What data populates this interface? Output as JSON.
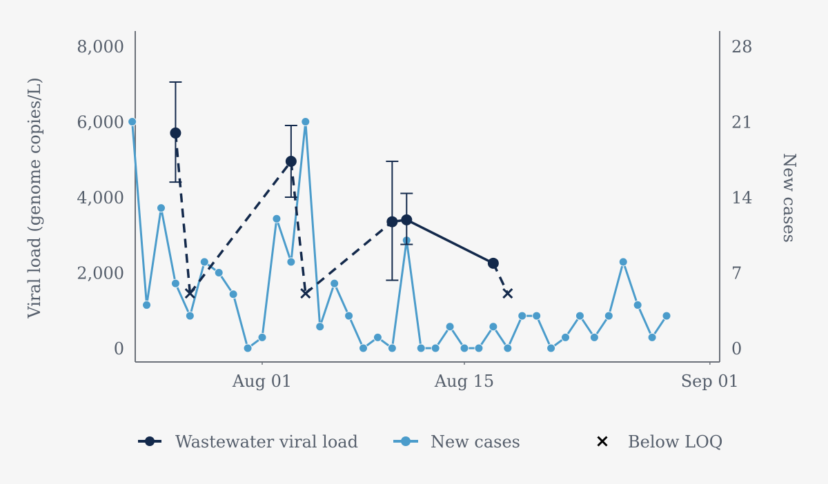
{
  "chart_data": {
    "type": "line",
    "x_axis": {
      "type": "date",
      "ticks": [
        "2021-08-01",
        "2021-08-15",
        "2021-09-01"
      ],
      "tick_labels": [
        "Aug 01",
        "Aug 15",
        "Sep 01"
      ],
      "range": [
        "2021-07-23",
        "2021-09-01"
      ]
    },
    "y_left": {
      "label": "Viral load (genome copies/L)",
      "ticks": [
        0,
        2000,
        4000,
        6000,
        8000
      ],
      "tick_labels": [
        "0",
        "2,000",
        "4,000",
        "6,000",
        "8,000"
      ],
      "ylim": [
        0,
        8000
      ]
    },
    "y_right": {
      "label": "New cases",
      "ticks": [
        0,
        7,
        14,
        21,
        28
      ],
      "tick_labels": [
        "0",
        "7",
        "14",
        "21",
        "28"
      ],
      "ylim": [
        0,
        28
      ]
    },
    "grid": false,
    "legend_position": "bottom",
    "series": [
      {
        "name": "Wastewater viral load",
        "axis": "left",
        "color": "#13294b",
        "points": [
          {
            "x": "2021-07-26",
            "y": 5700,
            "err_low": 4400,
            "err_high": 7050
          },
          {
            "x": "2021-08-03",
            "y": 4950,
            "err_low": 4000,
            "err_high": 5900
          },
          {
            "x": "2021-08-10",
            "y": 3350,
            "err_low": 1800,
            "err_high": 4950
          },
          {
            "x": "2021-08-11",
            "y": 3400,
            "err_low": 2750,
            "err_high": 4100
          },
          {
            "x": "2021-08-17",
            "y": 2250
          }
        ],
        "below_loq": [
          {
            "x": "2021-07-27",
            "y": 1450
          },
          {
            "x": "2021-08-04",
            "y": 1450
          },
          {
            "x": "2021-08-18",
            "y": 1450
          }
        ],
        "segments": [
          {
            "from": 0,
            "to_loq": 0,
            "style": "dashed"
          },
          {
            "from_loq": 0,
            "to": 1,
            "style": "dashed"
          },
          {
            "from": 1,
            "to_loq": 1,
            "style": "dashed"
          },
          {
            "from_loq": 1,
            "to": 2,
            "style": "dashed"
          },
          {
            "from": 2,
            "to": 3,
            "style": "solid"
          },
          {
            "from": 3,
            "to": 4,
            "style": "solid"
          },
          {
            "from": 4,
            "to_loq": 2,
            "style": "dashed"
          }
        ]
      },
      {
        "name": "New cases",
        "axis": "right",
        "color": "#4b9ccb",
        "x_start": "2021-07-23",
        "values": [
          21,
          4,
          13,
          6,
          3,
          8,
          7,
          5,
          0,
          1,
          12,
          8,
          21,
          2,
          6,
          3,
          0,
          1,
          0,
          10,
          0,
          0,
          2,
          0,
          0,
          2,
          0,
          3,
          3,
          0,
          1,
          3,
          1,
          3,
          8,
          4,
          1,
          3
        ]
      }
    ],
    "legend": [
      {
        "label": "Wastewater viral load",
        "marker": "line-dot",
        "color": "#13294b"
      },
      {
        "label": "New cases",
        "marker": "line-dot",
        "color": "#4b9ccb"
      },
      {
        "label": "Below LOQ",
        "marker": "cross",
        "color": "#000000"
      }
    ]
  }
}
